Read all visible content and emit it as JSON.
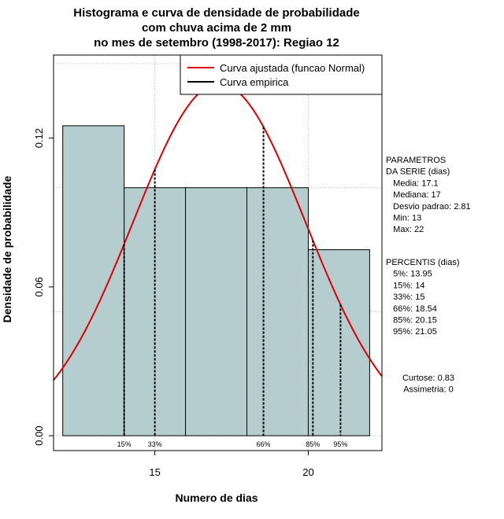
{
  "chart_data": {
    "type": "histogram",
    "title": [
      "Histograma e curva de densidade de probabilidade",
      "com chuva acima de 2 mm",
      "no mes de setembro (1998-2017): Regiao 12"
    ],
    "xlabel": "Numero de dias",
    "ylabel": "Densidade de probabilidade",
    "xlim": [
      11.7,
      22.4
    ],
    "ylim": [
      -0.006,
      0.1535
    ],
    "x_ticks": [
      15,
      20
    ],
    "y_ticks": [
      0.0,
      0.06,
      0.12
    ],
    "y_tick_labels": [
      "0.00",
      "0.06",
      "0.12"
    ],
    "grid": true,
    "bins": [
      {
        "x0": 12,
        "x1": 14,
        "density": 0.125
      },
      {
        "x0": 14,
        "x1": 16,
        "density": 0.1
      },
      {
        "x0": 16,
        "x1": 18,
        "density": 0.1
      },
      {
        "x0": 18,
        "x1": 20,
        "density": 0.1
      },
      {
        "x0": 20,
        "x1": 22,
        "density": 0.075
      }
    ],
    "bar_color": "#b5cdce",
    "curve_color": "#dd0000",
    "normal_fit": {
      "mean": 17.1,
      "sd": 2.81
    },
    "legend": {
      "position": "top-right",
      "entries": [
        {
          "label": "Curva ajustada (funcao Normal)",
          "color": "#dd0000"
        },
        {
          "label": "Curva empirica",
          "color": "#000000"
        }
      ]
    },
    "percentile_lines": [
      {
        "label": "15%",
        "x": 14
      },
      {
        "label": "33%",
        "x": 15
      },
      {
        "label": "66%",
        "x": 18.54
      },
      {
        "label": "85%",
        "x": 20.15
      },
      {
        "label": "95%",
        "x": 21.05
      }
    ],
    "stats": {
      "params_lines": [
        "PARAMETROS",
        "DA SERIE (dias)",
        "   Media: 17.1",
        "   Mediana: 17",
        "   Desvio padrao: 2.81",
        "   Min: 13",
        "   Max: 22"
      ],
      "percentis_lines": [
        "PERCENTIS (dias)",
        "   5%: 13.95",
        "   15%: 14",
        "   33%: 15",
        "   66%: 18.54",
        "   85%: 20.15",
        "   95%: 21.05"
      ],
      "shape_lines": [
        "Curtose: 0.83",
        "Assimetria: 0"
      ]
    }
  }
}
